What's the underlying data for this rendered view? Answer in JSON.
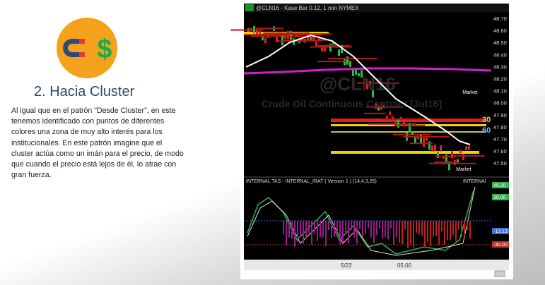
{
  "slide": {
    "title": "2. Hacia Cluster",
    "body": [
      "Al igual que en el patrón \"Desde Cluster\", en este",
      "tenemos identificado con puntos de diferentes",
      "colores una zona de muy alto interés para los",
      "institucionales. En este patrón imagine que el",
      "cluster actúa como un imán para el precio, de modo",
      "que cuando el precio está lejos de él, lo atrae con",
      "gran fuerza."
    ]
  },
  "chart_image": {
    "header": "@CLN16 - Kase Bar 0.12, 1 min  NYMEX",
    "watermark_symbol": "@CLN16",
    "watermark_name": "Crude Oil Continuous Contract [Jul16]",
    "price_labels": [
      "48.70",
      "48.60",
      "48.50",
      "48.40",
      "48.30",
      "48.20",
      "48.10",
      "48.00",
      "47.90",
      "47.80",
      "47.70",
      "47.60",
      "47.50"
    ],
    "marker_top": "Market",
    "marker_bottom": "Market",
    "level_labels": [
      "30",
      "60"
    ],
    "indicator_header": "INTERNAL TAS - INTERNAL_IRAT ( Version 1 ) (14,4,3,25)",
    "indicator_corner": "INTERNAI",
    "indicator_labels": [
      "45.00",
      "30.00",
      "-13.13",
      "-30.00"
    ],
    "x_labels": [
      "5/22",
      "05:00"
    ]
  }
}
